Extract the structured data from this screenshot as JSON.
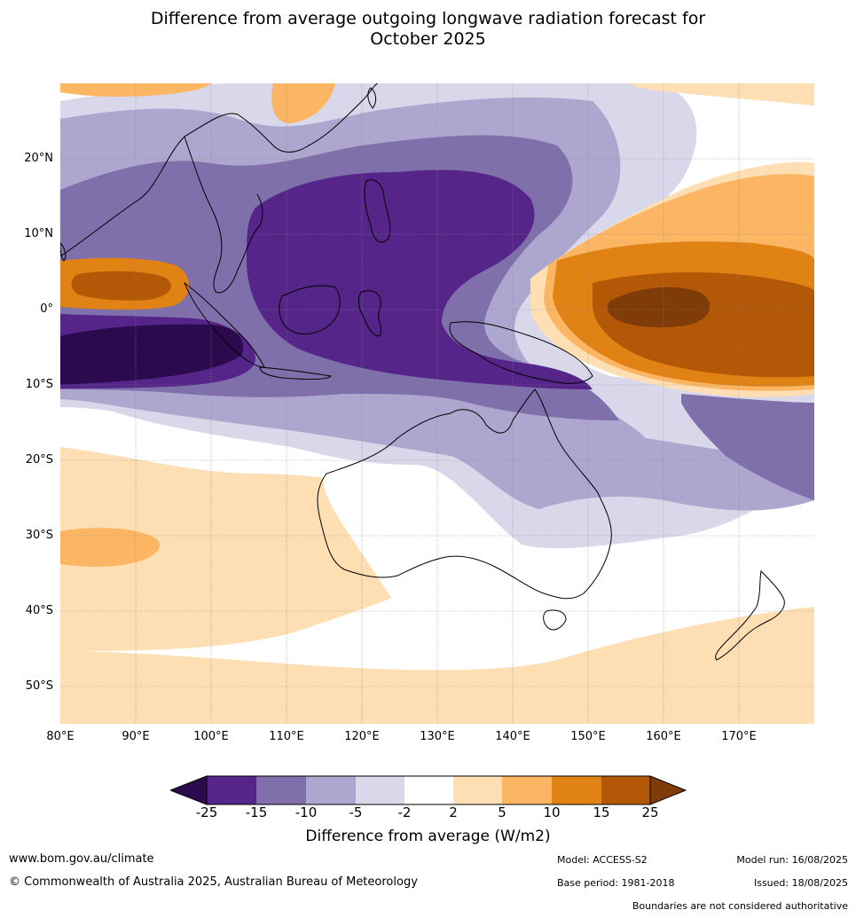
{
  "title": {
    "line1": "Difference from average outgoing longwave radiation forecast for",
    "line2": "October 2025"
  },
  "lat_labels": [
    "20°N",
    "10°N",
    "0°",
    "10°S",
    "20°S",
    "30°S",
    "40°S",
    "50°S"
  ],
  "lon_labels": [
    "80°E",
    "90°E",
    "100°E",
    "110°E",
    "120°E",
    "130°E",
    "140°E",
    "150°E",
    "160°E",
    "170°E"
  ],
  "colorbar": {
    "ticks": [
      "-25",
      "-15",
      "-10",
      "-5",
      "-2",
      "2",
      "5",
      "10",
      "15",
      "25"
    ],
    "colors": [
      "#2c0a4e",
      "#552589",
      "#7f6fab",
      "#ada6ce",
      "#d8d8ea",
      "#ffffff",
      "#fedfb3",
      "#fcb562",
      "#e08214",
      "#b35806",
      "#7f3b08"
    ],
    "label": "Difference from average (W/m2)"
  },
  "footer": {
    "website": "www.bom.gov.au/climate",
    "copyright": "© Commonwealth of Australia 2025, Australian Bureau of Meteorology",
    "model": "Model: ACCESS-S2",
    "base_period": "Base period: 1981-2018",
    "model_run": "Model run: 16/08/2025",
    "issued": "Issued: 18/08/2025",
    "boundaries": "Boundaries are not considered authoritative"
  }
}
